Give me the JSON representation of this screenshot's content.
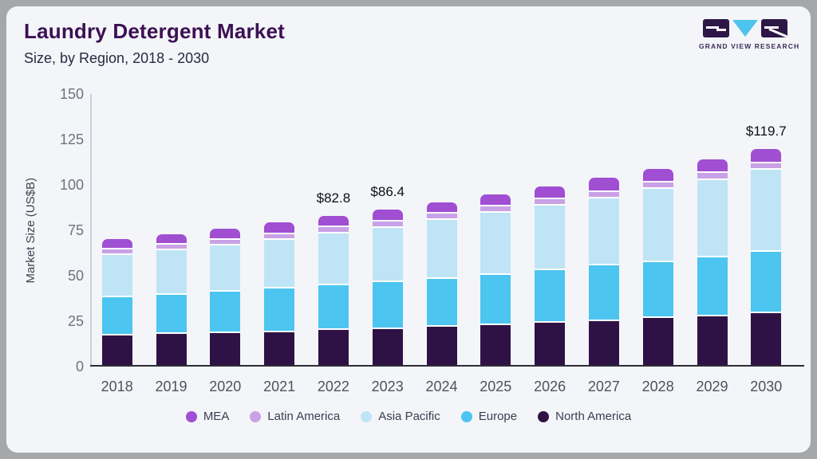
{
  "header": {
    "title": "Laundry Detergent Market",
    "subtitle": "Size, by Region, 2018 - 2030"
  },
  "logo": {
    "text": "GRAND VIEW RESEARCH"
  },
  "colors": {
    "card_background": "#f3f5f9",
    "outer_background": "#a6a7ab",
    "title": "#3c1053",
    "logo_block": "#2d1747",
    "logo_triangle": "#4ec3ee"
  },
  "chart_data": {
    "type": "bar",
    "stacked": true,
    "title": "Laundry Detergent Market",
    "subtitle": "Size, by Region, 2018 - 2030",
    "xlabel": "",
    "ylabel": "Market Size (US$B)",
    "ylim": [
      0,
      150
    ],
    "yticks": [
      0,
      25,
      50,
      75,
      100,
      125,
      150
    ],
    "grid": false,
    "categories": [
      "2018",
      "2019",
      "2020",
      "2021",
      "2022",
      "2023",
      "2024",
      "2025",
      "2026",
      "2027",
      "2028",
      "2029",
      "2030"
    ],
    "series": [
      {
        "name": "North America",
        "color": "#2f1245",
        "values": [
          17.2,
          17.8,
          18.4,
          19.0,
          20.0,
          20.7,
          21.9,
          22.8,
          24.1,
          25.1,
          26.6,
          27.8,
          29.5
        ]
      },
      {
        "name": "Europe",
        "color": "#4cc5f0",
        "values": [
          21.0,
          21.9,
          22.9,
          23.8,
          24.6,
          25.7,
          26.3,
          27.8,
          28.8,
          30.5,
          30.9,
          32.4,
          33.8
        ]
      },
      {
        "name": "Asia Pacific",
        "color": "#bfe4f6",
        "values": [
          23.3,
          24.2,
          25.2,
          26.8,
          28.6,
          30.1,
          32.4,
          34.2,
          35.7,
          37.2,
          40.4,
          42.4,
          44.9
        ]
      },
      {
        "name": "Latin America",
        "color": "#c9a1e6",
        "values": [
          3.1,
          3.2,
          3.3,
          3.4,
          3.4,
          3.5,
          3.6,
          3.4,
          3.5,
          3.4,
          3.4,
          4.0,
          3.6
        ]
      },
      {
        "name": "MEA",
        "color": "#a04ed2",
        "values": [
          5.8,
          5.9,
          6.0,
          6.2,
          6.2,
          6.4,
          6.1,
          6.7,
          7.1,
          7.7,
          7.6,
          7.6,
          7.9
        ]
      }
    ],
    "totals": [
      70.4,
      73.0,
      75.8,
      79.2,
      82.8,
      86.4,
      90.3,
      94.9,
      99.2,
      103.9,
      108.9,
      114.2,
      119.7
    ],
    "annotations": [
      {
        "category": "2022",
        "text": "$82.8"
      },
      {
        "category": "2023",
        "text": "$86.4"
      },
      {
        "category": "2030",
        "text": "$119.7"
      }
    ],
    "legend": {
      "position": "bottom",
      "items": [
        "MEA",
        "Latin America",
        "Asia Pacific",
        "Europe",
        "North America"
      ]
    }
  }
}
